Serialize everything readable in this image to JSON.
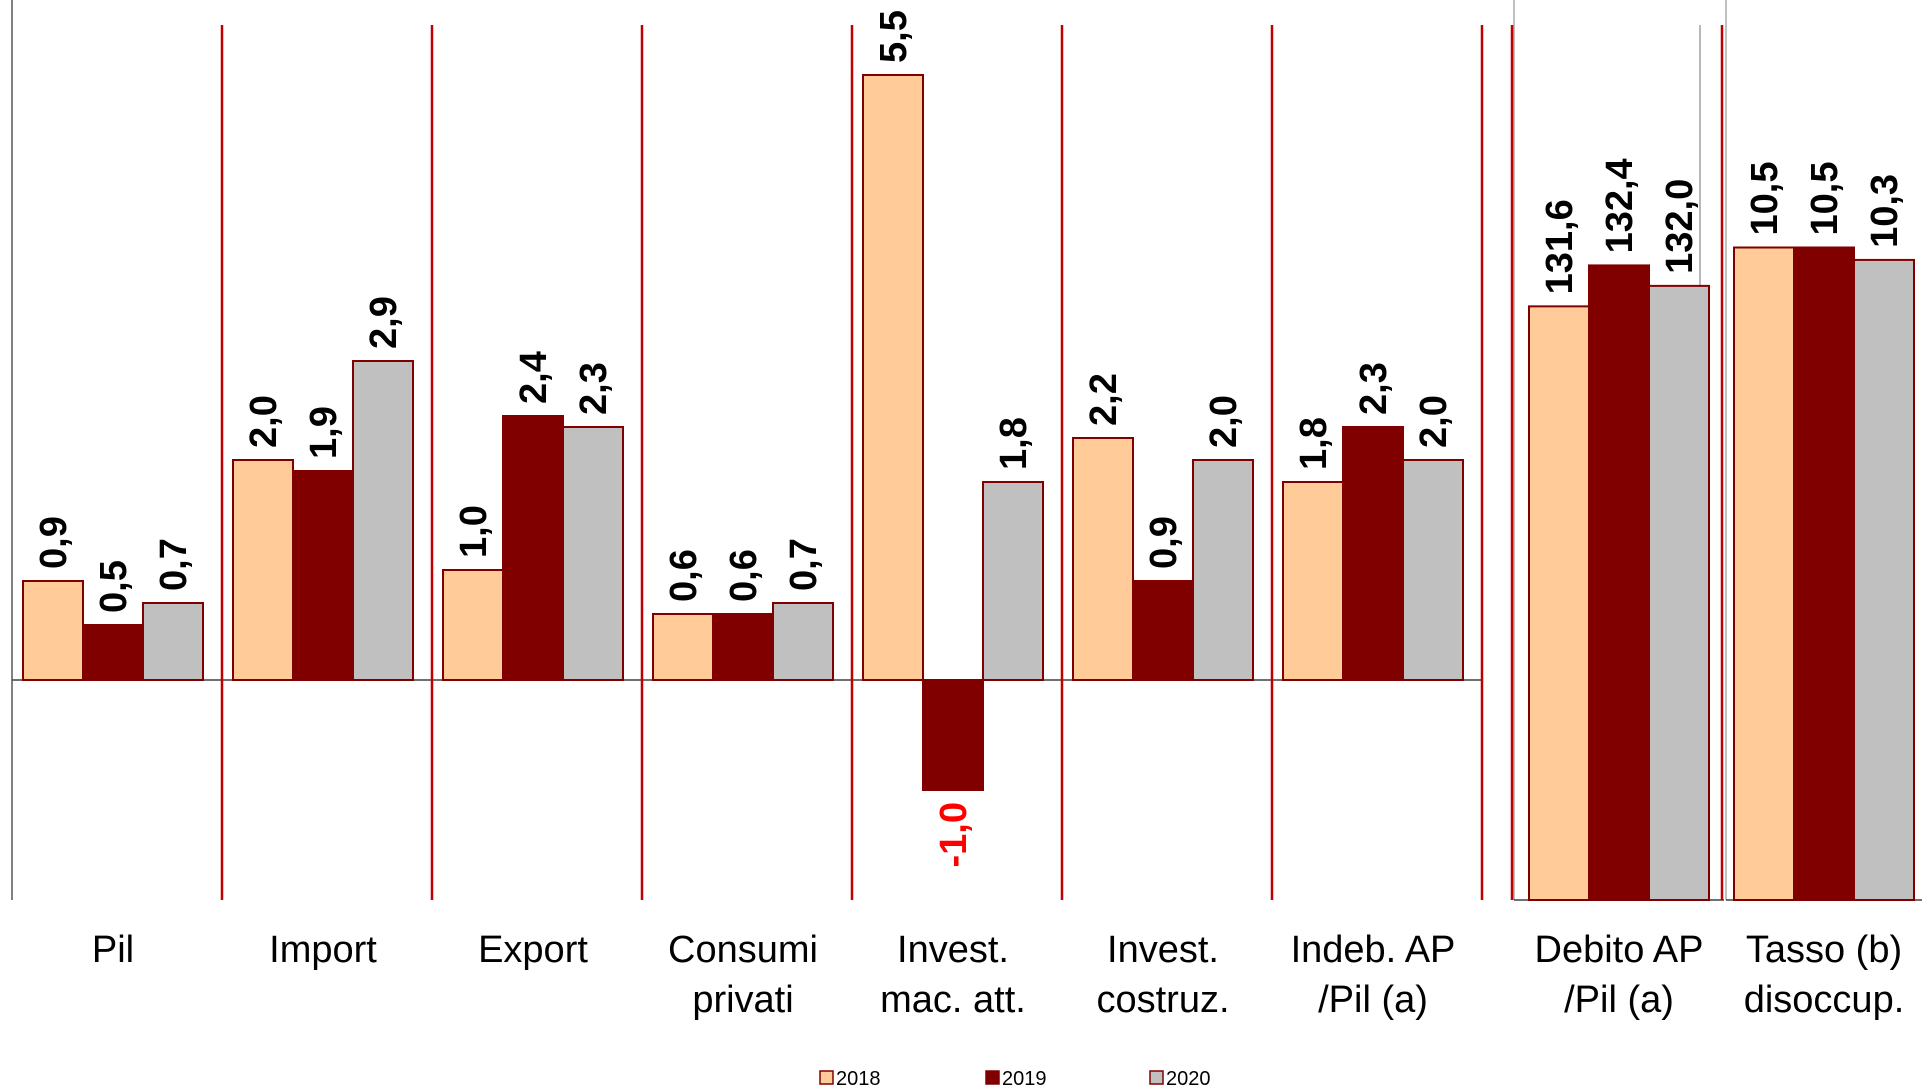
{
  "chart_data": {
    "type": "bar",
    "title": "",
    "xlabel": "",
    "ylabel": "",
    "legend_position": "bottom",
    "colors": {
      "2018": "#FFCC99",
      "2019": "#800000",
      "2020": "#C0C0C0",
      "bar_border": "#800000",
      "negative_label": "#FF0000",
      "separator": "#C00000",
      "axis": "#000000"
    },
    "panels": [
      {
        "ylim": [
          -2.0,
          6.0
        ],
        "categories": [
          {
            "line1": "Pil",
            "line2": ""
          },
          {
            "line1": "Import",
            "line2": ""
          },
          {
            "line1": "Export",
            "line2": ""
          },
          {
            "line1": "Consumi",
            "line2": "privati"
          },
          {
            "line1": "Invest.",
            "line2": "mac. att."
          },
          {
            "line1": "Invest.",
            "line2": "costruz."
          },
          {
            "line1": "Indeb. AP",
            "line2": "/Pil (a)"
          }
        ],
        "series": [
          {
            "name": "2018",
            "values": [
              0.9,
              2.0,
              1.0,
              0.6,
              5.5,
              2.2,
              1.8
            ],
            "labels": [
              "0,9",
              "2,0",
              "1,0",
              "0,6",
              "5,5",
              "2,2",
              "1,8"
            ]
          },
          {
            "name": "2019",
            "values": [
              0.5,
              1.9,
              2.4,
              0.6,
              -1.0,
              0.9,
              2.3
            ],
            "labels": [
              "0,5",
              "1,9",
              "2,4",
              "0,6",
              "-1,0",
              "0,9",
              "2,3"
            ]
          },
          {
            "name": "2020",
            "values": [
              0.7,
              2.9,
              2.3,
              0.7,
              1.8,
              2.0,
              2.0
            ],
            "labels": [
              "0,7",
              "2,9",
              "2,3",
              "0,7",
              "1,8",
              "2,0",
              "2,0"
            ]
          }
        ]
      },
      {
        "ylim": [
          120,
          137
        ],
        "categories": [
          {
            "line1": "Debito AP",
            "line2": "/Pil (a)"
          }
        ],
        "series": [
          {
            "name": "2018",
            "values": [
              131.6
            ],
            "labels": [
              "131,6"
            ]
          },
          {
            "name": "2019",
            "values": [
              132.4
            ],
            "labels": [
              "132,4"
            ]
          },
          {
            "name": "2020",
            "values": [
              132.0
            ],
            "labels": [
              "132,0"
            ]
          }
        ]
      },
      {
        "ylim": [
          0,
          14
        ],
        "categories": [
          {
            "line1": "Tasso (b)",
            "line2": "disoccup."
          }
        ],
        "series": [
          {
            "name": "2018",
            "values": [
              10.5
            ],
            "labels": [
              "10,5"
            ]
          },
          {
            "name": "2019",
            "values": [
              10.5
            ],
            "labels": [
              "10,5"
            ]
          },
          {
            "name": "2020",
            "values": [
              10.3
            ],
            "labels": [
              "10,3"
            ]
          }
        ]
      }
    ],
    "legend": [
      {
        "name": "2018"
      },
      {
        "name": "2019"
      },
      {
        "name": "2020"
      }
    ]
  }
}
